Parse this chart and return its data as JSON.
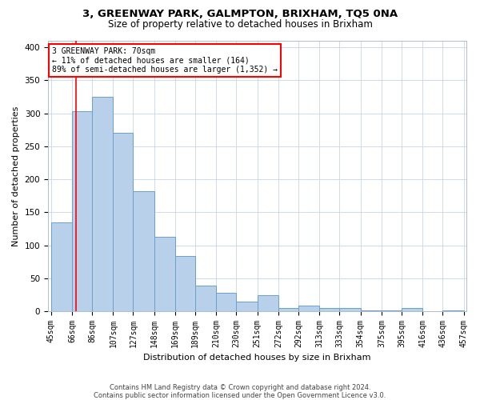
{
  "title": "3, GREENWAY PARK, GALMPTON, BRIXHAM, TQ5 0NA",
  "subtitle": "Size of property relative to detached houses in Brixham",
  "xlabel": "Distribution of detached houses by size in Brixham",
  "ylabel": "Number of detached properties",
  "footer_line1": "Contains HM Land Registry data © Crown copyright and database right 2024.",
  "footer_line2": "Contains public sector information licensed under the Open Government Licence v3.0.",
  "annotation_line1": "3 GREENWAY PARK: 70sqm",
  "annotation_line2": "← 11% of detached houses are smaller (164)",
  "annotation_line3": "89% of semi-detached houses are larger (1,352) →",
  "bar_color": "#b8d0ea",
  "bar_edge_color": "#6aa0cc",
  "bar_heights": [
    135,
    303,
    325,
    270,
    182,
    113,
    84,
    39,
    28,
    15,
    25,
    5,
    9,
    5,
    5,
    1,
    2,
    5,
    0,
    2
  ],
  "bin_edges": [
    45,
    66,
    86,
    107,
    127,
    148,
    169,
    189,
    210,
    230,
    251,
    272,
    292,
    313,
    333,
    354,
    375,
    395,
    416,
    436,
    457
  ],
  "tick_labels": [
    "45sqm",
    "66sqm",
    "86sqm",
    "107sqm",
    "127sqm",
    "148sqm",
    "169sqm",
    "189sqm",
    "210sqm",
    "230sqm",
    "251sqm",
    "272sqm",
    "292sqm",
    "313sqm",
    "333sqm",
    "354sqm",
    "375sqm",
    "395sqm",
    "416sqm",
    "436sqm",
    "457sqm"
  ],
  "ylim": [
    0,
    410
  ],
  "yticks": [
    0,
    50,
    100,
    150,
    200,
    250,
    300,
    350,
    400
  ],
  "red_line_x": 70,
  "background_color": "#ffffff",
  "grid_color": "#c8d4e8",
  "title_fontsize": 9.5,
  "subtitle_fontsize": 8.5,
  "axis_label_fontsize": 8,
  "tick_fontsize": 7,
  "footer_fontsize": 6
}
